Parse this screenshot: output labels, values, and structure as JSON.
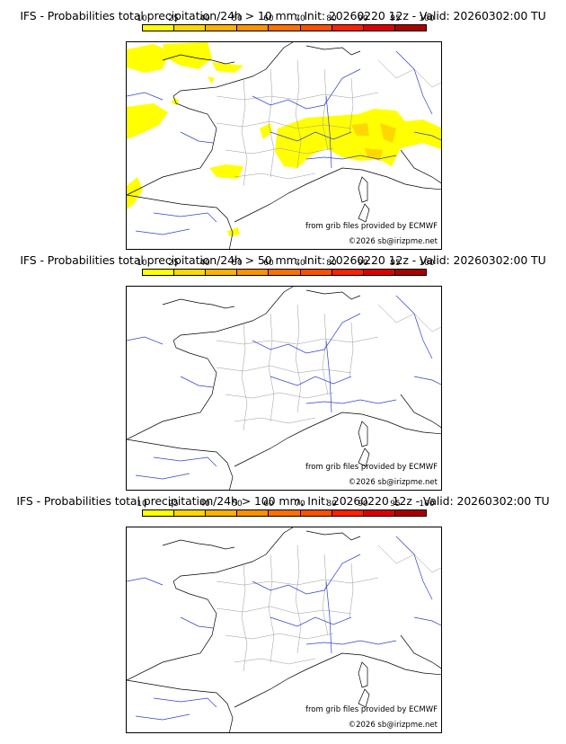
{
  "colors": [
    "#ffff00",
    "#ffd700",
    "#ffb000",
    "#ff9000",
    "#ff7000",
    "#ff5000",
    "#ff2000",
    "#dd0000",
    "#aa0000",
    "#7a0000",
    "#4a0000"
  ],
  "colorbar_ticks": [
    "10",
    "25",
    "40",
    "50",
    "60",
    "70",
    "80",
    "90",
    "95",
    "100"
  ],
  "credits": {
    "line1": "from grib files provided by ECMWF",
    "line2": "©2026 sb@irizpme.net"
  },
  "panels": [
    {
      "title": "IFS - Probabilities total precipitation/24h > 10 mm, Init: 20260220 12z - Valid: 20260302:00 TU",
      "threshold": "10 mm",
      "has_precip": true
    },
    {
      "title": "IFS - Probabilities total precipitation/24h > 50 mm, Init: 20260220 12z - Valid: 20260302:00 TU",
      "threshold": "50 mm",
      "has_precip": false
    },
    {
      "title": "IFS - Probabilities total precipitation/24h > 100 mm, Init: 20260220 12z - Valid: 20260302:00 TU",
      "threshold": "100 mm",
      "has_precip": false
    }
  ]
}
